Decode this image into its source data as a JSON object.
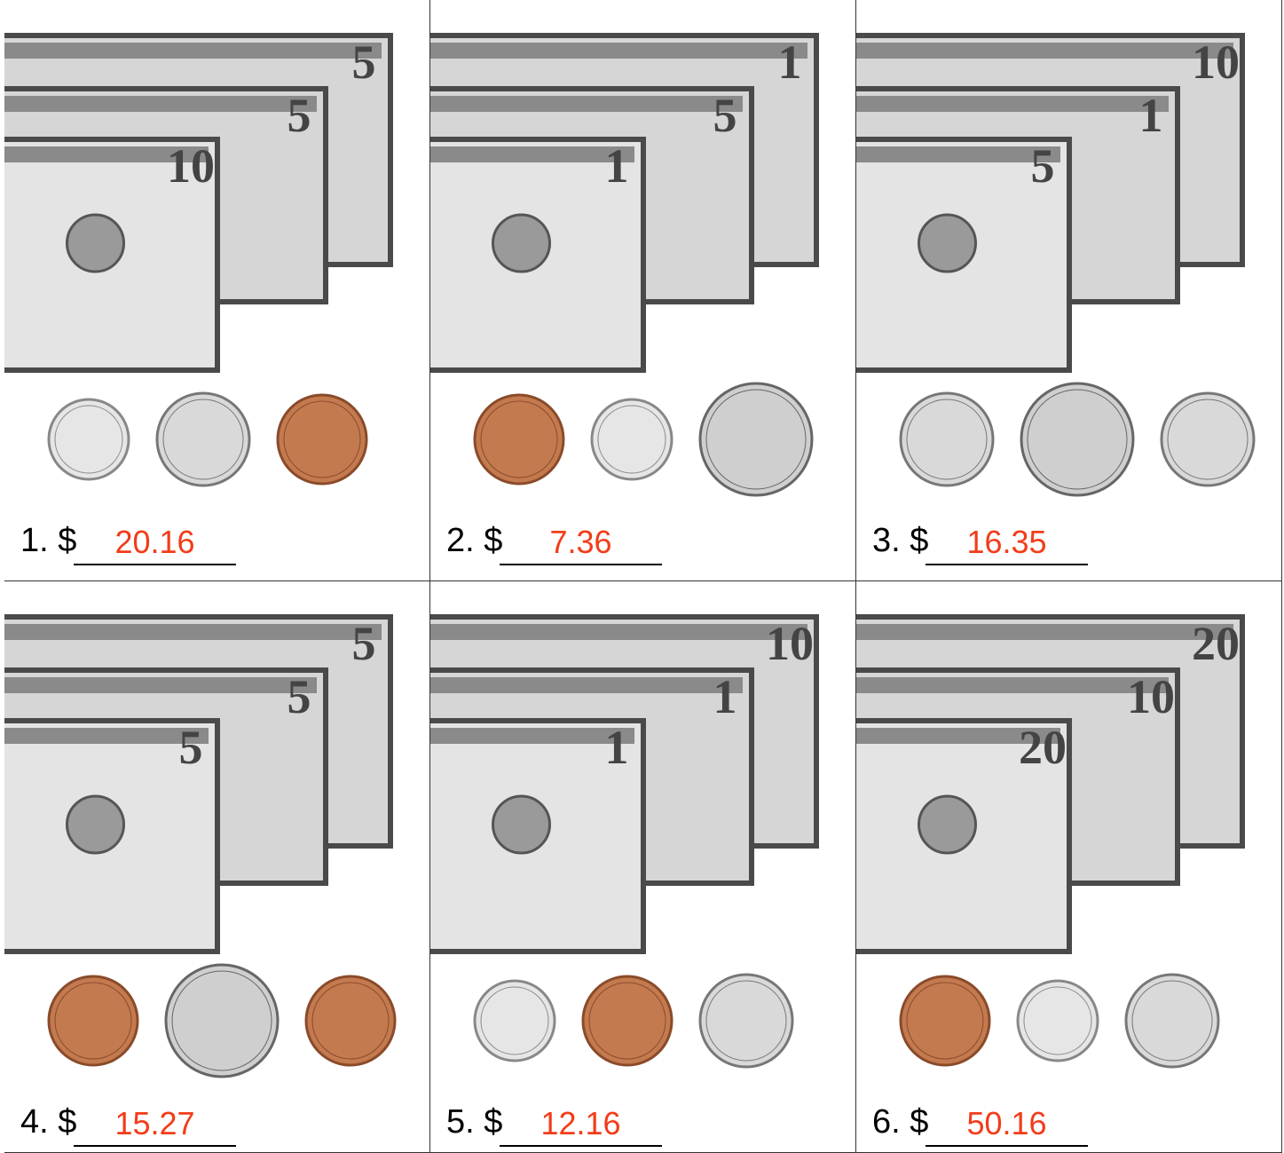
{
  "cells": [
    {
      "label": "1. $",
      "answer": "20.16",
      "bills": [
        "5",
        "5",
        "10"
      ]
    },
    {
      "label": "2. $",
      "answer": "7.36",
      "bills": [
        "1",
        "5",
        "1"
      ]
    },
    {
      "label": "3. $",
      "answer": "16.35",
      "bills": [
        "10",
        "1",
        "5"
      ]
    },
    {
      "label": "4. $",
      "answer": "15.27",
      "bills": [
        "5",
        "5",
        "5"
      ]
    },
    {
      "label": "5. $",
      "answer": "12.16",
      "bills": [
        "10",
        "1",
        "1"
      ]
    },
    {
      "label": "6. $",
      "answer": "50.16",
      "bills": [
        "20",
        "10",
        "20"
      ]
    }
  ]
}
